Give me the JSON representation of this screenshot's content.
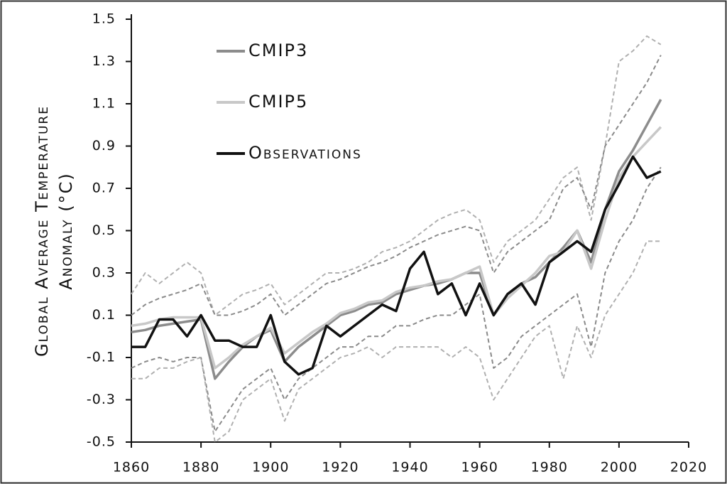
{
  "chart_data": {
    "type": "line",
    "y_label_lines": [
      "Global Average Temperature",
      "Anomaly (°C)"
    ],
    "x": [
      1860,
      1864,
      1868,
      1872,
      1876,
      1880,
      1884,
      1888,
      1892,
      1896,
      1900,
      1904,
      1908,
      1912,
      1916,
      1920,
      1924,
      1928,
      1932,
      1936,
      1940,
      1944,
      1948,
      1952,
      1956,
      1960,
      1964,
      1968,
      1972,
      1976,
      1980,
      1984,
      1988,
      1992,
      1996,
      2000,
      2004,
      2008,
      2012
    ],
    "series": [
      {
        "color": "#b0b0b0",
        "dashed": true,
        "values": [
          0.2,
          0.3,
          0.25,
          0.3,
          0.35,
          0.3,
          0.1,
          0.15,
          0.2,
          0.22,
          0.25,
          0.15,
          0.2,
          0.25,
          0.3,
          0.3,
          0.32,
          0.35,
          0.4,
          0.42,
          0.45,
          0.5,
          0.55,
          0.58,
          0.6,
          0.55,
          0.35,
          0.45,
          0.5,
          0.55,
          0.65,
          0.75,
          0.8,
          0.55,
          0.9,
          1.3,
          1.35,
          1.42,
          1.38
        ]
      },
      {
        "color": "#8a8a8a",
        "dashed": true,
        "values": [
          0.1,
          0.15,
          0.18,
          0.2,
          0.22,
          0.25,
          0.1,
          0.1,
          0.12,
          0.15,
          0.2,
          0.1,
          0.15,
          0.2,
          0.25,
          0.27,
          0.3,
          0.33,
          0.35,
          0.38,
          0.42,
          0.45,
          0.48,
          0.5,
          0.52,
          0.5,
          0.3,
          0.4,
          0.45,
          0.5,
          0.55,
          0.7,
          0.75,
          0.6,
          0.9,
          1.0,
          1.1,
          1.2,
          1.33
        ]
      },
      {
        "color": "#8a8a8a",
        "dashed": true,
        "values": [
          -0.15,
          -0.12,
          -0.1,
          -0.12,
          -0.1,
          -0.1,
          -0.45,
          -0.35,
          -0.25,
          -0.2,
          -0.15,
          -0.3,
          -0.2,
          -0.15,
          -0.1,
          -0.05,
          -0.05,
          0.0,
          0.0,
          0.05,
          0.05,
          0.08,
          0.1,
          0.1,
          0.15,
          0.2,
          -0.15,
          -0.1,
          0.0,
          0.05,
          0.1,
          0.15,
          0.2,
          -0.05,
          0.3,
          0.45,
          0.55,
          0.7,
          0.8
        ]
      },
      {
        "color": "#b0b0b0",
        "dashed": true,
        "values": [
          -0.2,
          -0.2,
          -0.15,
          -0.15,
          -0.12,
          -0.1,
          -0.5,
          -0.45,
          -0.3,
          -0.25,
          -0.2,
          -0.4,
          -0.25,
          -0.2,
          -0.15,
          -0.1,
          -0.08,
          -0.05,
          -0.1,
          -0.05,
          -0.05,
          -0.05,
          -0.05,
          -0.1,
          -0.05,
          -0.1,
          -0.3,
          -0.2,
          -0.1,
          0.0,
          0.05,
          -0.2,
          0.05,
          -0.1,
          0.1,
          0.2,
          0.3,
          0.45,
          0.45
        ]
      },
      {
        "name": "CMIP3",
        "color": "#8c8c8c",
        "values": [
          0.02,
          0.03,
          0.05,
          0.06,
          0.07,
          0.08,
          -0.2,
          -0.12,
          -0.05,
          0.0,
          0.03,
          -0.12,
          -0.05,
          0.0,
          0.05,
          0.1,
          0.12,
          0.15,
          0.16,
          0.2,
          0.22,
          0.24,
          0.25,
          0.27,
          0.3,
          0.3,
          0.1,
          0.2,
          0.25,
          0.28,
          0.35,
          0.42,
          0.5,
          0.35,
          0.6,
          0.78,
          0.88,
          1.0,
          1.12
        ]
      },
      {
        "name": "CMIP5",
        "color": "#c8c8c8",
        "values": [
          0.05,
          0.06,
          0.08,
          0.09,
          0.09,
          0.09,
          -0.15,
          -0.1,
          -0.04,
          0.0,
          0.04,
          -0.08,
          -0.03,
          0.02,
          0.06,
          0.11,
          0.13,
          0.16,
          0.17,
          0.21,
          0.23,
          0.24,
          0.26,
          0.27,
          0.3,
          0.33,
          0.1,
          0.18,
          0.24,
          0.3,
          0.38,
          0.4,
          0.5,
          0.32,
          0.55,
          0.75,
          0.85,
          0.92,
          0.99
        ]
      },
      {
        "name": "Observations",
        "color": "#111111",
        "values": [
          -0.05,
          -0.05,
          0.08,
          0.08,
          0.0,
          0.1,
          -0.02,
          -0.02,
          -0.05,
          -0.05,
          0.1,
          -0.12,
          -0.18,
          -0.15,
          0.05,
          0.0,
          0.05,
          0.1,
          0.15,
          0.12,
          0.32,
          0.4,
          0.2,
          0.25,
          0.1,
          0.25,
          0.1,
          0.2,
          0.25,
          0.15,
          0.35,
          0.4,
          0.45,
          0.4,
          0.6,
          0.72,
          0.85,
          0.75,
          0.78
        ]
      }
    ],
    "xlim": [
      1860,
      2020
    ],
    "xticks": [
      1860,
      1880,
      1900,
      1920,
      1940,
      1960,
      1980,
      2000,
      2020
    ],
    "ylim": [
      -0.5,
      1.5
    ],
    "yticks": [
      1.5,
      1.3,
      1.1,
      0.9,
      0.7,
      0.5,
      0.3,
      0.1,
      -0.1,
      -0.3,
      -0.5
    ]
  }
}
